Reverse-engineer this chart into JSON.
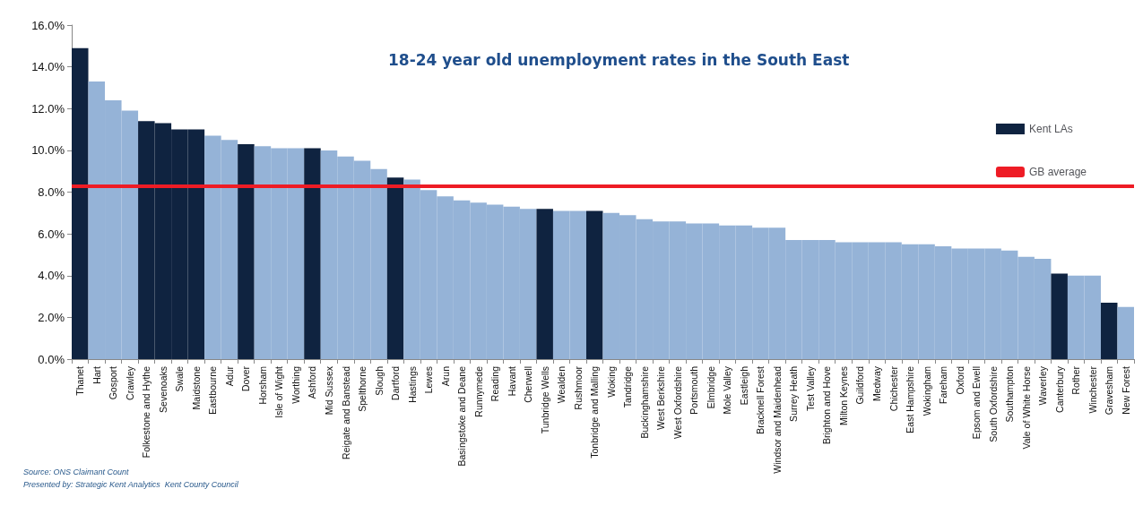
{
  "chart_data": {
    "type": "bar",
    "title": "18-24 year old unemployment rates in the South East",
    "categories": [
      "Thanet",
      "Hart",
      "Gosport",
      "Crawley",
      "Folkestone and Hythe",
      "Sevenoaks",
      "Swale",
      "Maidstone",
      "Eastbourne",
      "Adur",
      "Dover",
      "Horsham",
      "Isle of Wight",
      "Worthing",
      "Ashford",
      "Mid Sussex",
      "Reigate and Banstead",
      "Spelthorne",
      "Slough",
      "Dartford",
      "Hastings",
      "Lewes",
      "Arun",
      "Basingstoke and Deane",
      "Runnymede",
      "Reading",
      "Havant",
      "Cherwell",
      "Tunbridge Wells",
      "Wealden",
      "Rushmoor",
      "Tonbridge and Malling",
      "Woking",
      "Tandridge",
      "Buckinghamshire",
      "West Berkshire",
      "West Oxfordshire",
      "Portsmouth",
      "Elmbridge",
      "Mole Valley",
      "Eastleigh",
      "Bracknell Forest",
      "Windsor and Maidenhead",
      "Surrey Heath",
      "Test Valley",
      "Brighton and Hove",
      "Milton Keynes",
      "Guildford",
      "Medway",
      "Chichester",
      "East Hampshire",
      "Wokingham",
      "Fareham",
      "Oxford",
      "Epsom and Ewell",
      "South Oxfordshire",
      "Southampton",
      "Vale of White Horse",
      "Waverley",
      "Canterbury",
      "Rother",
      "Winchester",
      "Gravesham",
      "New Forest"
    ],
    "series": [
      {
        "name": "Kent LAs",
        "color": "#0f2340",
        "values": [
          14.9,
          13.3,
          12.4,
          11.9,
          11.4,
          11.3,
          11.0,
          11.0,
          10.7,
          10.5,
          10.3,
          10.2,
          10.1,
          10.1,
          10.1,
          10.0,
          9.7,
          9.5,
          9.1,
          8.7,
          8.6,
          8.1,
          7.8,
          7.6,
          7.5,
          7.4,
          7.3,
          7.2,
          7.2,
          7.1,
          7.1,
          7.1,
          7.0,
          6.9,
          6.7,
          6.6,
          6.6,
          6.5,
          6.5,
          6.4,
          6.4,
          6.3,
          6.3,
          5.7,
          5.7,
          5.7,
          5.6,
          5.6,
          5.6,
          5.6,
          5.5,
          5.5,
          5.4,
          5.3,
          5.3,
          5.3,
          5.2,
          4.9,
          4.8,
          4.1,
          4.0,
          4.0,
          2.7,
          2.5
        ],
        "colors": [
          "#0f2340",
          "#95b3d7",
          "#95b3d7",
          "#95b3d7",
          "#0f2340",
          "#0f2340",
          "#0f2340",
          "#0f2340",
          "#95b3d7",
          "#95b3d7",
          "#0f2340",
          "#95b3d7",
          "#95b3d7",
          "#95b3d7",
          "#0f2340",
          "#95b3d7",
          "#95b3d7",
          "#95b3d7",
          "#95b3d7",
          "#0f2340",
          "#95b3d7",
          "#95b3d7",
          "#95b3d7",
          "#95b3d7",
          "#95b3d7",
          "#95b3d7",
          "#95b3d7",
          "#95b3d7",
          "#0f2340",
          "#95b3d7",
          "#95b3d7",
          "#0f2340",
          "#95b3d7",
          "#95b3d7",
          "#95b3d7",
          "#95b3d7",
          "#95b3d7",
          "#95b3d7",
          "#95b3d7",
          "#95b3d7",
          "#95b3d7",
          "#95b3d7",
          "#95b3d7",
          "#95b3d7",
          "#95b3d7",
          "#95b3d7",
          "#95b3d7",
          "#95b3d7",
          "#95b3d7",
          "#95b3d7",
          "#95b3d7",
          "#95b3d7",
          "#95b3d7",
          "#95b3d7",
          "#95b3d7",
          "#95b3d7",
          "#95b3d7",
          "#95b3d7",
          "#95b3d7",
          "#0f2340",
          "#95b3d7",
          "#95b3d7",
          "#0f2340",
          "#95b3d7"
        ]
      }
    ],
    "ylim": [
      0,
      16
    ],
    "yticks": [
      {
        "value": 0,
        "label": "0.0%"
      },
      {
        "value": 2,
        "label": "2.0%"
      },
      {
        "value": 4,
        "label": "4.0%"
      },
      {
        "value": 6,
        "label": "6.0%"
      },
      {
        "value": 8,
        "label": "8.0%"
      },
      {
        "value": 10,
        "label": "10.0%"
      },
      {
        "value": 12,
        "label": "12.0%"
      },
      {
        "value": 14,
        "label": "14.0%"
      },
      {
        "value": 16,
        "label": "16.0%"
      }
    ],
    "ref_lines": [
      {
        "axis": "y",
        "value": 8.3,
        "label": "GB average",
        "color": "#ee1c25"
      }
    ],
    "legend": "right",
    "grid": false,
    "annotations": [
      "Source: ONS Claimant Count",
      "Presented by: Strategic Kent Analytics  Kent County Council"
    ]
  }
}
